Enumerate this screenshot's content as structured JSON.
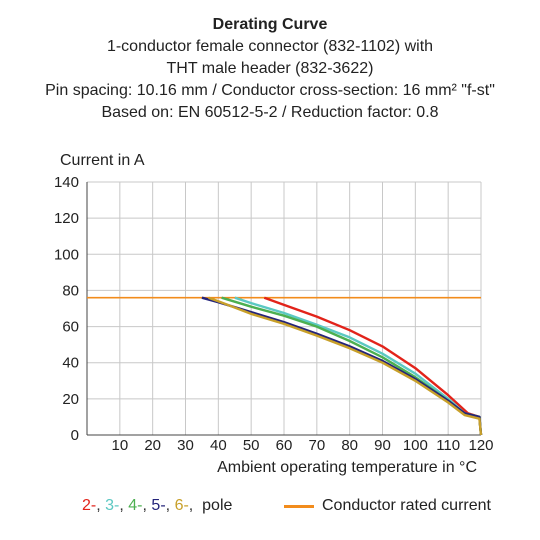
{
  "title_lines": [
    "Derating Curve",
    "1-conductor female connector (832-1102) with",
    "THT male header (832-3622)",
    "Pin spacing: 10.16 mm / Conductor cross-section: 16 mm² \"f-st\"",
    "Based on: EN 60512-5-2 / Reduction factor: 0.8"
  ],
  "legend": {
    "poles": [
      {
        "label": "2-",
        "color": "#e2231a"
      },
      {
        "label": "3-",
        "color": "#5bc8c2"
      },
      {
        "label": "4-",
        "color": "#4caf50"
      },
      {
        "label": "5-",
        "color": "#23237a"
      },
      {
        "label": "6-",
        "color": "#c8a02a"
      }
    ],
    "separator": ",",
    "pole_suffix": "pole",
    "rated_label": "Conductor rated current",
    "rated_color": "#f28c1c"
  },
  "chart_data": {
    "type": "line",
    "ylabel": "Current in A",
    "xlabel": "Ambient operating temperature in °C",
    "xlim": [
      0,
      120
    ],
    "ylim": [
      0,
      140
    ],
    "x_ticks": [
      10,
      20,
      30,
      40,
      50,
      60,
      70,
      80,
      90,
      100,
      110,
      120
    ],
    "y_ticks": [
      0,
      20,
      40,
      60,
      80,
      100,
      120,
      140
    ],
    "grid": true,
    "rated_current": {
      "name": "Conductor rated current",
      "y": 76,
      "x_range": [
        0,
        120
      ],
      "color": "#f28c1c"
    },
    "series": [
      {
        "name": "2-",
        "color": "#e2231a",
        "points": [
          [
            54,
            76
          ],
          [
            60,
            72
          ],
          [
            70,
            65.5
          ],
          [
            80,
            58
          ],
          [
            90,
            49
          ],
          [
            100,
            37
          ],
          [
            110,
            22
          ],
          [
            116,
            12
          ],
          [
            119.5,
            10
          ],
          [
            120,
            0
          ]
        ]
      },
      {
        "name": "3-",
        "color": "#5bc8c2",
        "points": [
          [
            45,
            76
          ],
          [
            50,
            73
          ],
          [
            60,
            67.5
          ],
          [
            70,
            61
          ],
          [
            80,
            54
          ],
          [
            90,
            45
          ],
          [
            100,
            34
          ],
          [
            110,
            20
          ],
          [
            115,
            12
          ],
          [
            119.5,
            10
          ],
          [
            120,
            0
          ]
        ]
      },
      {
        "name": "4-",
        "color": "#4caf50",
        "points": [
          [
            41,
            76
          ],
          [
            50,
            71
          ],
          [
            60,
            66
          ],
          [
            70,
            60
          ],
          [
            80,
            52
          ],
          [
            90,
            43
          ],
          [
            100,
            32
          ],
          [
            110,
            19
          ],
          [
            115,
            12
          ],
          [
            119.5,
            10
          ],
          [
            120,
            0
          ]
        ]
      },
      {
        "name": "5-",
        "color": "#23237a",
        "points": [
          [
            35,
            76
          ],
          [
            40,
            73.5
          ],
          [
            50,
            68
          ],
          [
            60,
            62.5
          ],
          [
            70,
            56
          ],
          [
            80,
            49
          ],
          [
            90,
            41
          ],
          [
            100,
            31
          ],
          [
            110,
            19
          ],
          [
            115,
            12
          ],
          [
            119.5,
            10
          ],
          [
            120,
            0
          ]
        ]
      },
      {
        "name": "6-",
        "color": "#c8a02a",
        "points": [
          [
            37,
            76
          ],
          [
            40,
            74
          ],
          [
            50,
            67
          ],
          [
            60,
            61.5
          ],
          [
            70,
            55
          ],
          [
            80,
            48
          ],
          [
            90,
            40
          ],
          [
            100,
            30
          ],
          [
            110,
            18
          ],
          [
            115,
            11
          ],
          [
            119.5,
            9
          ],
          [
            120,
            0
          ]
        ]
      }
    ]
  }
}
